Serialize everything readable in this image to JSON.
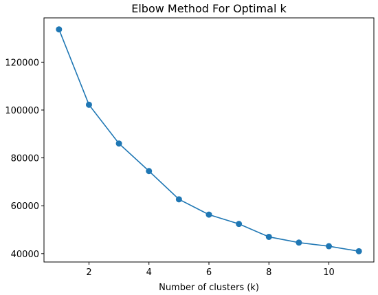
{
  "chart_data": {
    "type": "line",
    "title": "Elbow Method For Optimal k",
    "xlabel": "Number of clusters (k)",
    "ylabel": "",
    "xlim": [
      0.5,
      11.5
    ],
    "ylim": [
      36500,
      138500
    ],
    "x_ticks": [
      2,
      4,
      6,
      8,
      10
    ],
    "y_ticks": [
      40000,
      60000,
      80000,
      100000,
      120000
    ],
    "grid": false,
    "legend": "none",
    "series": [
      {
        "x": [
          1,
          2,
          3,
          4,
          5,
          6,
          7,
          8,
          9,
          10,
          11
        ],
        "values": [
          133700,
          102200,
          86000,
          74500,
          62700,
          56300,
          52400,
          47000,
          44600,
          43100,
          41000
        ],
        "color": "#1f77b4"
      }
    ]
  }
}
